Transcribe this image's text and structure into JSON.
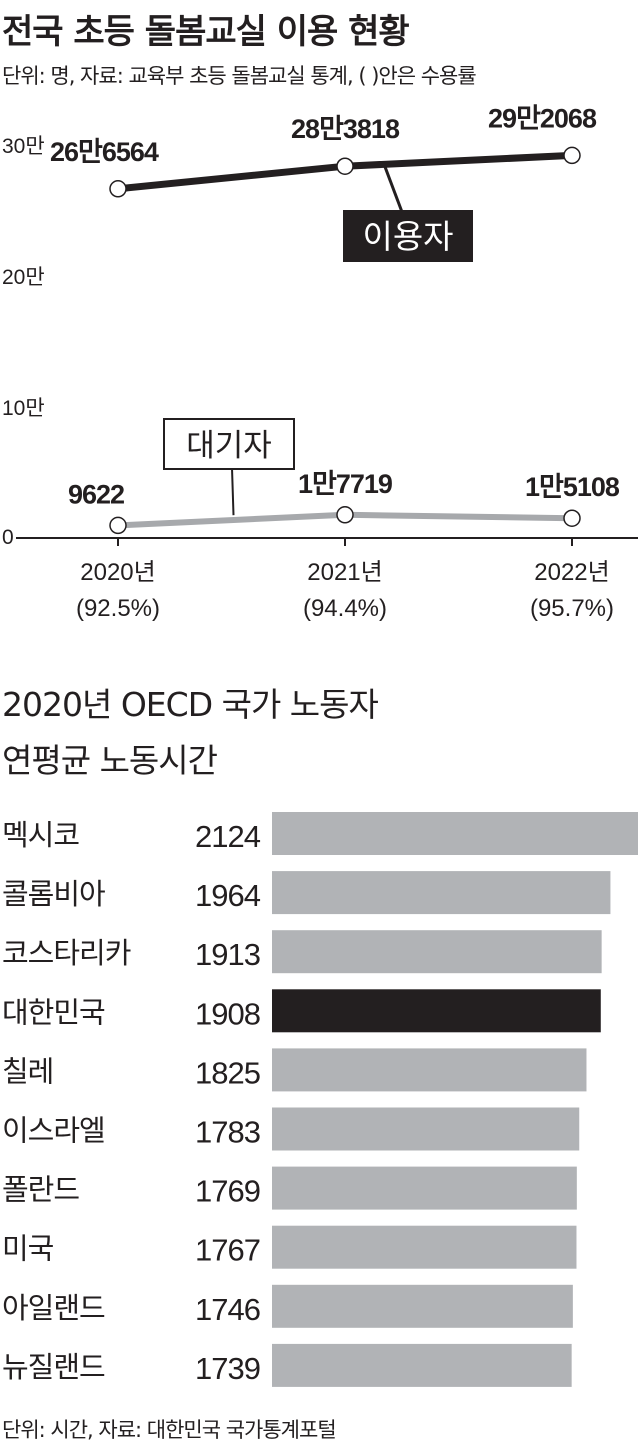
{
  "chart_data": [
    {
      "type": "line",
      "title": "전국 초등 돌봄교실 이용 현황",
      "subtitle": "단위: 명, 자료: 교육부 초등 돌봄교실 통계, (  )안은 수용률",
      "x": [
        "2020년",
        "2021년",
        "2022년"
      ],
      "x_sub": [
        "(92.5%)",
        "(94.4%)",
        "(95.7%)"
      ],
      "y_ticks": [
        "30만",
        "20만",
        "10만",
        "0"
      ],
      "ylim": [
        0,
        300000
      ],
      "series": [
        {
          "name": "이용자",
          "values": [
            266564,
            283818,
            292068
          ],
          "labels": [
            "26만6564",
            "28만3818",
            "29만2068"
          ],
          "color": "#231f20"
        },
        {
          "name": "대기자",
          "values": [
            9622,
            17719,
            15108
          ],
          "labels": [
            "9622",
            "1만7719",
            "1만5108"
          ],
          "color": "#a7a9ac"
        }
      ]
    },
    {
      "type": "bar",
      "orientation": "horizontal",
      "title": [
        "2020년 OECD 국가 노동자",
        "연평균 노동시간"
      ],
      "categories": [
        "멕시코",
        "콜롬비아",
        "코스타리카",
        "대한민국",
        "칠레",
        "이스라엘",
        "폴란드",
        "미국",
        "아일랜드",
        "뉴질랜드"
      ],
      "values": [
        2124,
        1964,
        1913,
        1908,
        1825,
        1783,
        1769,
        1767,
        1746,
        1739
      ],
      "value_labels": [
        "2124",
        "1964",
        "1913",
        "1908",
        "1825",
        "1783",
        "1769",
        "1767",
        "1746",
        "1739"
      ],
      "highlight": "대한민국",
      "bar_color": "#b1b3b6",
      "highlight_color": "#231f20",
      "footer": "단위: 시간, 자료: 대한민국 국가통계포털"
    }
  ]
}
